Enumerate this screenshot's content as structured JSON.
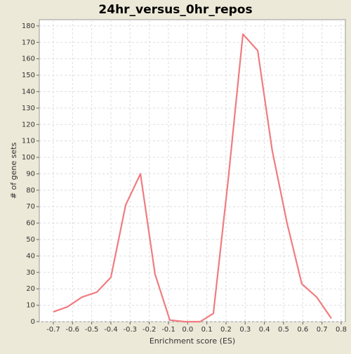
{
  "chart_data": {
    "type": "line",
    "title": "24hr_versus_0hr_repos",
    "x_label": "Enrichment score (ES)",
    "y_label": "# of gene sets",
    "x": [
      -0.7,
      -0.627,
      -0.55,
      -0.473,
      -0.4,
      -0.323,
      -0.246,
      -0.17,
      -0.093,
      -0.016,
      0.065,
      0.134,
      0.211,
      0.288,
      0.365,
      0.441,
      0.518,
      0.595,
      0.672,
      0.749
    ],
    "series": [
      {
        "color": "#f07c80",
        "values": [
          6,
          9,
          15,
          18,
          27,
          71,
          90,
          29,
          1,
          0,
          0,
          5,
          86,
          175,
          165,
          104,
          60,
          23,
          15,
          2
        ]
      }
    ],
    "xlim": [
      -0.773,
      0.822
    ],
    "ylim": [
      0,
      183.8
    ],
    "xticks": [
      -0.7,
      -0.6,
      -0.5,
      -0.4,
      -0.3,
      -0.2,
      -0.1,
      {
        "value": 0,
        "label": "0.0"
      },
      0.1,
      0.2,
      0.3,
      0.4,
      0.5,
      0.6,
      0.7,
      0.8
    ],
    "yticks": [
      0,
      10,
      20,
      30,
      40,
      50,
      60,
      70,
      80,
      90,
      100,
      110,
      120,
      130,
      140,
      150,
      160,
      170,
      180
    ],
    "grid": true
  }
}
